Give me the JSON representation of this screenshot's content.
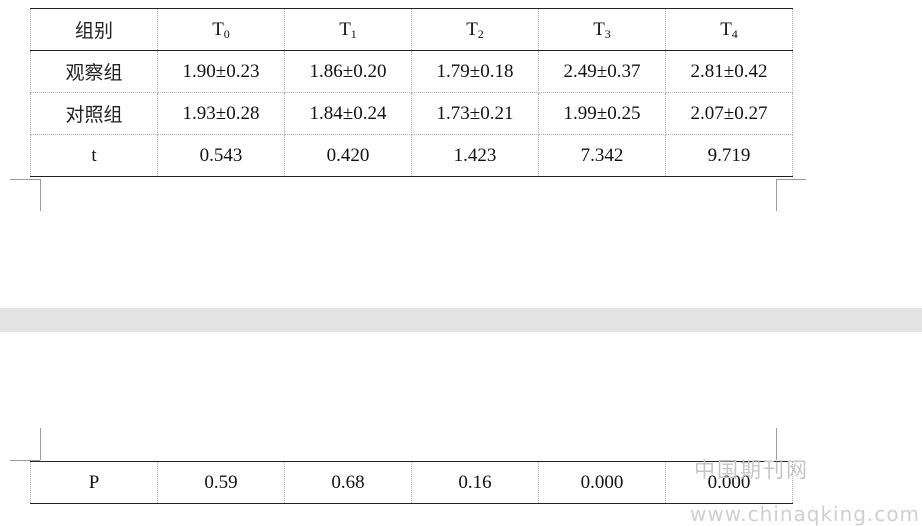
{
  "table_top": {
    "header": {
      "group_label": "组别",
      "columns": [
        {
          "base": "T",
          "sub": "0"
        },
        {
          "base": "T",
          "sub": "1"
        },
        {
          "base": "T",
          "sub": "2"
        },
        {
          "base": "T",
          "sub": "3"
        },
        {
          "base": "T",
          "sub": "4"
        }
      ]
    },
    "rows": [
      {
        "label": "观察组",
        "values": [
          "1.90±0.23",
          "1.86±0.20",
          "1.79±0.18",
          "2.49±0.37",
          "2.81±0.42"
        ]
      },
      {
        "label": "对照组",
        "values": [
          "1.93±0.28",
          "1.84±0.24",
          "1.73±0.21",
          "1.99±0.25",
          "2.07±0.27"
        ]
      },
      {
        "label": "t",
        "values": [
          "0.543",
          "0.420",
          "1.423",
          "7.342",
          "9.719"
        ]
      }
    ]
  },
  "table_bottom": {
    "rows": [
      {
        "label": "P",
        "values": [
          "0.59",
          "0.68",
          "0.16",
          "0.000",
          "0.000"
        ]
      }
    ]
  },
  "watermark": {
    "site_name": "中国期刊网",
    "url": "www.chinaqking.com"
  }
}
